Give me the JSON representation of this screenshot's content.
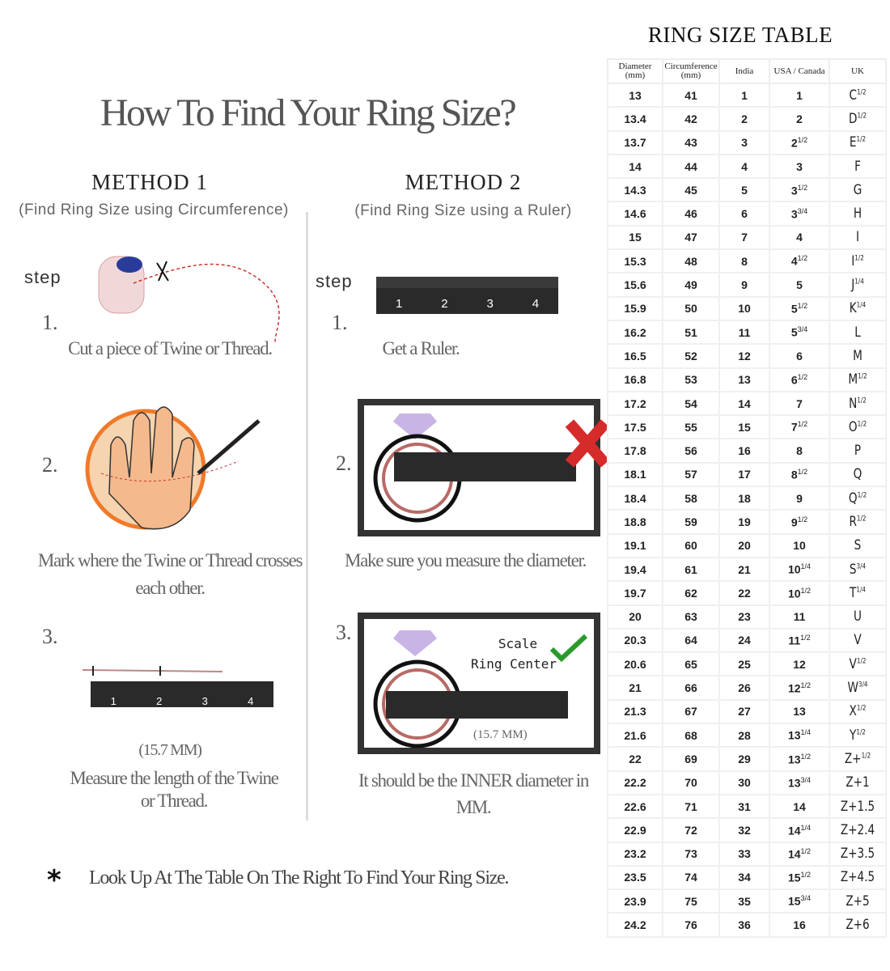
{
  "title": "How To Find Your Ring Size?",
  "method1": {
    "heading": "METHOD 1",
    "subtitle": "(Find Ring Size using Circumference)",
    "step_label": "step",
    "steps": [
      {
        "num": "1.",
        "caption": "Cut a piece of  Twine or Thread."
      },
      {
        "num": "2.",
        "caption": "Mark where the Twine or Thread crosses each other."
      },
      {
        "num": "3.",
        "measurement": "(15.7 MM)",
        "caption": "Measure the length of the Twine or Thread."
      }
    ]
  },
  "method2": {
    "heading": "METHOD 2",
    "subtitle": "(Find Ring Size using a Ruler)",
    "step_label": "step",
    "steps": [
      {
        "num": "1.",
        "caption": "Get a Ruler."
      },
      {
        "num": "2.",
        "caption": "Make sure you measure the diameter."
      },
      {
        "num": "3.",
        "scale_label": "Scale",
        "center_label": "Ring Center",
        "measurement": "(15.7 MM)",
        "caption": "It should be the INNER diameter in MM."
      }
    ]
  },
  "ruler_labels": [
    "1",
    "2",
    "3",
    "4"
  ],
  "note": {
    "icon": "asterisk-icon",
    "text": "Look Up  At The Table On The Right To Find Your Ring Size."
  },
  "colors": {
    "wrong": "#d62b2b",
    "right": "#2a9a2a",
    "ring": "#b86a66",
    "ruler": "#2a2a2a"
  },
  "table": {
    "title": "RING SIZE TABLE",
    "headers": [
      "Diameter (mm)",
      "Circumference (mm)",
      "India",
      "USA / Canada",
      "UK"
    ],
    "rows": [
      [
        "13",
        "41",
        "1",
        [
          "1",
          ""
        ],
        [
          "C",
          "1/2"
        ]
      ],
      [
        "13.4",
        "42",
        "2",
        [
          "2",
          ""
        ],
        [
          "D",
          "1/2"
        ]
      ],
      [
        "13.7",
        "43",
        "3",
        [
          "2",
          "1/2"
        ],
        [
          "E",
          "1/2"
        ]
      ],
      [
        "14",
        "44",
        "4",
        [
          "3",
          ""
        ],
        [
          "F",
          ""
        ]
      ],
      [
        "14.3",
        "45",
        "5",
        [
          "3",
          "1/2"
        ],
        [
          "G",
          ""
        ]
      ],
      [
        "14.6",
        "46",
        "6",
        [
          "3",
          "3/4"
        ],
        [
          "H",
          ""
        ]
      ],
      [
        "15",
        "47",
        "7",
        [
          "4",
          ""
        ],
        [
          "I",
          ""
        ]
      ],
      [
        "15.3",
        "48",
        "8",
        [
          "4",
          "1/2"
        ],
        [
          "I",
          "1/2"
        ]
      ],
      [
        "15.6",
        "49",
        "9",
        [
          "5",
          ""
        ],
        [
          "J",
          "1/4"
        ]
      ],
      [
        "15.9",
        "50",
        "10",
        [
          "5",
          "1/2"
        ],
        [
          "K",
          "1/4"
        ]
      ],
      [
        "16.2",
        "51",
        "11",
        [
          "5",
          "3/4"
        ],
        [
          "L",
          ""
        ]
      ],
      [
        "16.5",
        "52",
        "12",
        [
          "6",
          ""
        ],
        [
          "M",
          ""
        ]
      ],
      [
        "16.8",
        "53",
        "13",
        [
          "6",
          "1/2"
        ],
        [
          "M",
          "1/2"
        ]
      ],
      [
        "17.2",
        "54",
        "14",
        [
          "7",
          ""
        ],
        [
          "N",
          "1/2"
        ]
      ],
      [
        "17.5",
        "55",
        "15",
        [
          "7",
          "1/2"
        ],
        [
          "O",
          "1/2"
        ]
      ],
      [
        "17.8",
        "56",
        "16",
        [
          "8",
          ""
        ],
        [
          "P",
          ""
        ]
      ],
      [
        "18.1",
        "57",
        "17",
        [
          "8",
          "1/2"
        ],
        [
          "Q",
          ""
        ]
      ],
      [
        "18.4",
        "58",
        "18",
        [
          "9",
          ""
        ],
        [
          "Q",
          "1/2"
        ]
      ],
      [
        "18.8",
        "59",
        "19",
        [
          "9",
          "1/2"
        ],
        [
          "R",
          "1/2"
        ]
      ],
      [
        "19.1",
        "60",
        "20",
        [
          "10",
          ""
        ],
        [
          "S",
          ""
        ]
      ],
      [
        "19.4",
        "61",
        "21",
        [
          "10",
          "1/4"
        ],
        [
          "S",
          "3/4"
        ]
      ],
      [
        "19.7",
        "62",
        "22",
        [
          "10",
          "1/2"
        ],
        [
          "T",
          "1/4"
        ]
      ],
      [
        "20",
        "63",
        "23",
        [
          "11",
          ""
        ],
        [
          "U",
          ""
        ]
      ],
      [
        "20.3",
        "64",
        "24",
        [
          "11",
          "1/2"
        ],
        [
          "V",
          ""
        ]
      ],
      [
        "20.6",
        "65",
        "25",
        [
          "12",
          ""
        ],
        [
          "V",
          "1/2"
        ]
      ],
      [
        "21",
        "66",
        "26",
        [
          "12",
          "1/2"
        ],
        [
          "W",
          "3/4"
        ]
      ],
      [
        "21.3",
        "67",
        "27",
        [
          "13",
          ""
        ],
        [
          "X",
          "1/2"
        ]
      ],
      [
        "21.6",
        "68",
        "28",
        [
          "13",
          "1/4"
        ],
        [
          "Y",
          "1/2"
        ]
      ],
      [
        "22",
        "69",
        "29",
        [
          "13",
          "1/2"
        ],
        [
          "Z+",
          "1/2"
        ]
      ],
      [
        "22.2",
        "70",
        "30",
        [
          "13",
          "3/4"
        ],
        [
          "Z+1",
          ""
        ]
      ],
      [
        "22.6",
        "71",
        "31",
        [
          "14",
          ""
        ],
        [
          "Z+1.5",
          ""
        ]
      ],
      [
        "22.9",
        "72",
        "32",
        [
          "14",
          "1/4"
        ],
        [
          "Z+2.4",
          ""
        ]
      ],
      [
        "23.2",
        "73",
        "33",
        [
          "14",
          "1/2"
        ],
        [
          "Z+3.5",
          ""
        ]
      ],
      [
        "23.5",
        "74",
        "34",
        [
          "15",
          "1/2"
        ],
        [
          "Z+4.5",
          ""
        ]
      ],
      [
        "23.9",
        "75",
        "35",
        [
          "15",
          "3/4"
        ],
        [
          "Z+5",
          ""
        ]
      ],
      [
        "24.2",
        "76",
        "36",
        [
          "16",
          ""
        ],
        [
          "Z+6",
          ""
        ]
      ]
    ]
  }
}
